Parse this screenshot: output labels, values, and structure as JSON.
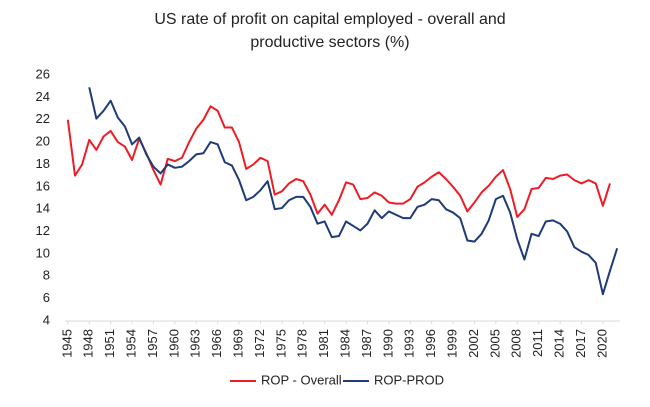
{
  "chart_data": {
    "type": "line",
    "title": [
      "US rate of profit on capital employed - overall and",
      "productive sectors (%)"
    ],
    "x": [
      1945,
      1946,
      1947,
      1948,
      1949,
      1950,
      1951,
      1952,
      1953,
      1954,
      1955,
      1956,
      1957,
      1958,
      1959,
      1960,
      1961,
      1962,
      1963,
      1964,
      1965,
      1966,
      1967,
      1968,
      1969,
      1970,
      1971,
      1972,
      1973,
      1974,
      1975,
      1976,
      1977,
      1978,
      1979,
      1980,
      1981,
      1982,
      1983,
      1984,
      1985,
      1986,
      1987,
      1988,
      1989,
      1990,
      1991,
      1992,
      1993,
      1994,
      1995,
      1996,
      1997,
      1998,
      1999,
      2000,
      2001,
      2002,
      2003,
      2004,
      2005,
      2006,
      2007,
      2008,
      2009,
      2010,
      2011,
      2012,
      2013,
      2014,
      2015,
      2016,
      2017,
      2018,
      2019,
      2020,
      2021,
      2022
    ],
    "series": [
      {
        "name": "ROP - Overall",
        "color": "#ee1c25",
        "values": [
          22,
          17,
          18,
          20.2,
          19.3,
          20.5,
          21,
          20,
          19.6,
          18.4,
          20.3,
          19,
          17.5,
          16.2,
          18.5,
          18.3,
          18.6,
          20,
          21.2,
          22,
          23.2,
          22.8,
          21.3,
          21.3,
          20,
          17.6,
          18,
          18.6,
          18.3,
          15.3,
          15.6,
          16.3,
          16.7,
          16.5,
          15.3,
          13.6,
          14.4,
          13.5,
          14.8,
          16.4,
          16.2,
          14.9,
          15,
          15.5,
          15.2,
          14.6,
          14.5,
          14.5,
          14.9,
          16,
          16.4,
          16.9,
          17.3,
          16.7,
          16,
          15.2,
          13.8,
          14.6,
          15.5,
          16.1,
          16.9,
          17.5,
          15.8,
          13.3,
          14,
          15.8,
          15.9,
          16.8,
          16.7,
          17,
          17.1,
          16.6,
          16.3,
          16.6,
          16.3,
          14.3,
          16.3,
          null
        ]
      },
      {
        "name": "ROP-PROD",
        "color": "#1f3a78",
        "values": [
          null,
          null,
          null,
          24.9,
          22.1,
          22.8,
          23.7,
          22.2,
          21.4,
          19.8,
          20.4,
          18.9,
          17.8,
          17.2,
          18,
          17.7,
          17.8,
          18.3,
          18.9,
          19,
          20,
          19.8,
          18.2,
          17.9,
          16.6,
          14.8,
          15.1,
          15.7,
          16.5,
          14,
          14.1,
          14.8,
          15.1,
          15.1,
          14.2,
          12.7,
          12.9,
          11.5,
          11.6,
          12.9,
          12.5,
          12.1,
          12.7,
          13.9,
          13.2,
          13.8,
          13.5,
          13.2,
          13.2,
          14.2,
          14.4,
          14.9,
          14.8,
          14,
          13.7,
          13.2,
          11.2,
          11.1,
          11.8,
          13,
          14.9,
          15.2,
          13.7,
          11.3,
          9.5,
          11.8,
          11.6,
          12.9,
          13,
          12.7,
          12,
          10.6,
          10.2,
          9.9,
          9.2,
          6.4,
          8.5,
          10.5
        ]
      }
    ],
    "xlim": [
      1944.6,
      2022.4
    ],
    "xticks": [
      1945,
      1948,
      1951,
      1954,
      1957,
      1960,
      1963,
      1966,
      1969,
      1972,
      1975,
      1978,
      1981,
      1984,
      1987,
      1990,
      1993,
      1996,
      1999,
      2002,
      2005,
      2008,
      2011,
      2014,
      2017,
      2020
    ],
    "ylim": [
      4,
      26
    ],
    "yticks": [
      4,
      6,
      8,
      10,
      12,
      14,
      16,
      18,
      20,
      22,
      24,
      26
    ],
    "grid": false,
    "legend": "bottom"
  }
}
